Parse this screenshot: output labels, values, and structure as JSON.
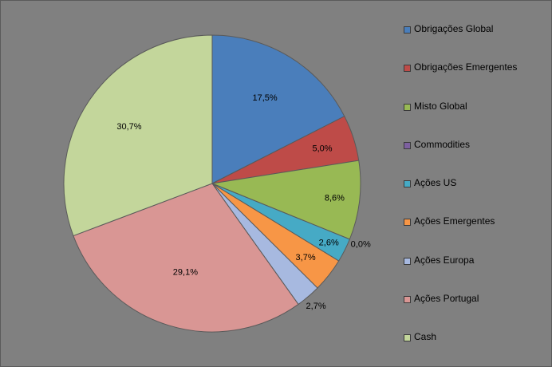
{
  "chart_data": {
    "type": "pie",
    "title": "",
    "legend_position": "right",
    "slices": [
      {
        "name": "Obrigações Global",
        "value": 17.5,
        "label": "17,5%",
        "color": "#4a7ebb"
      },
      {
        "name": "Obrigações Emergentes",
        "value": 5.0,
        "label": "5,0%",
        "color": "#be4b48"
      },
      {
        "name": "Misto Global",
        "value": 8.6,
        "label": "8,6%",
        "color": "#98b954"
      },
      {
        "name": "Commodities",
        "value": 0.0,
        "label": "0,0%",
        "color": "#7d60a0"
      },
      {
        "name": "Ações US",
        "value": 2.6,
        "label": "2,6%",
        "color": "#46aac5"
      },
      {
        "name": "Ações Emergentes",
        "value": 3.7,
        "label": "3,7%",
        "color": "#f79646"
      },
      {
        "name": "Ações Europa",
        "value": 2.7,
        "label": "2,7%",
        "color": "#a7b9e0"
      },
      {
        "name": "Ações Portugal",
        "value": 29.1,
        "label": "29,1%",
        "color": "#d99694"
      },
      {
        "name": "Cash",
        "value": 30.7,
        "label": "30,7%",
        "color": "#c3d69b"
      }
    ]
  },
  "colors": {
    "background": "#808080",
    "slice_border": "#5a5a5a"
  }
}
